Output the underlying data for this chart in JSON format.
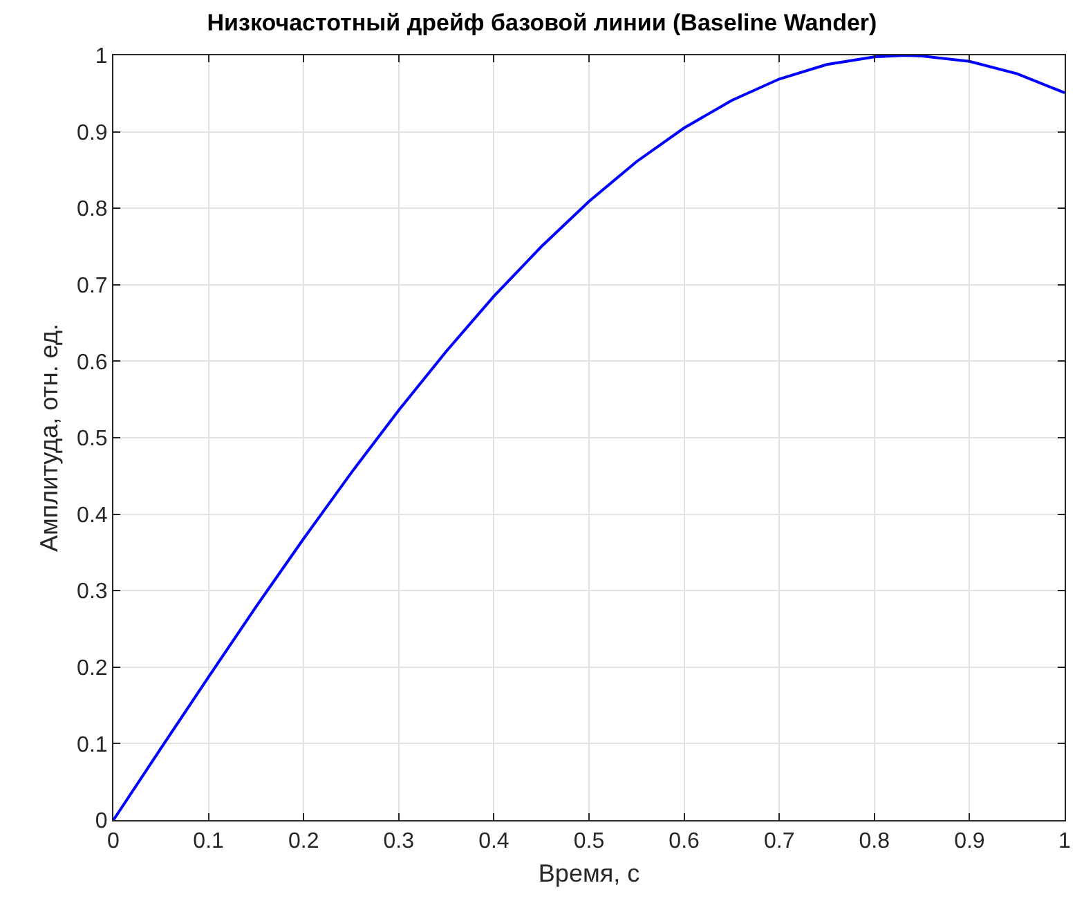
{
  "chart_data": {
    "type": "line",
    "title": "Низкочастотный дрейф базовой линии (Baseline Wander)",
    "xlabel": "Время, с",
    "ylabel": "Амплитуда, отн. ед.",
    "x": [
      0,
      0.05,
      0.1,
      0.15,
      0.2,
      0.25,
      0.3,
      0.35,
      0.4,
      0.45,
      0.5,
      0.55,
      0.6,
      0.65,
      0.7,
      0.75,
      0.8,
      0.833,
      0.85,
      0.9,
      0.95,
      1
    ],
    "series": [
      {
        "color": "#0000ff",
        "values": [
          0,
          0.094,
          0.187,
          0.279,
          0.368,
          0.454,
          0.536,
          0.613,
          0.685,
          0.75,
          0.809,
          0.861,
          0.905,
          0.941,
          0.969,
          0.988,
          0.998,
          1,
          0.999,
          0.992,
          0.976,
          0.951
        ]
      }
    ],
    "xlim": [
      0,
      1
    ],
    "ylim": [
      0,
      1
    ],
    "xticks": [
      0,
      0.1,
      0.2,
      0.3,
      0.4,
      0.5,
      0.6,
      0.7,
      0.8,
      0.9,
      1
    ],
    "yticks": [
      0,
      0.1,
      0.2,
      0.3,
      0.4,
      0.5,
      0.6,
      0.7,
      0.8,
      0.9,
      1
    ],
    "grid": true,
    "marker": "none",
    "line_style": "solid"
  }
}
